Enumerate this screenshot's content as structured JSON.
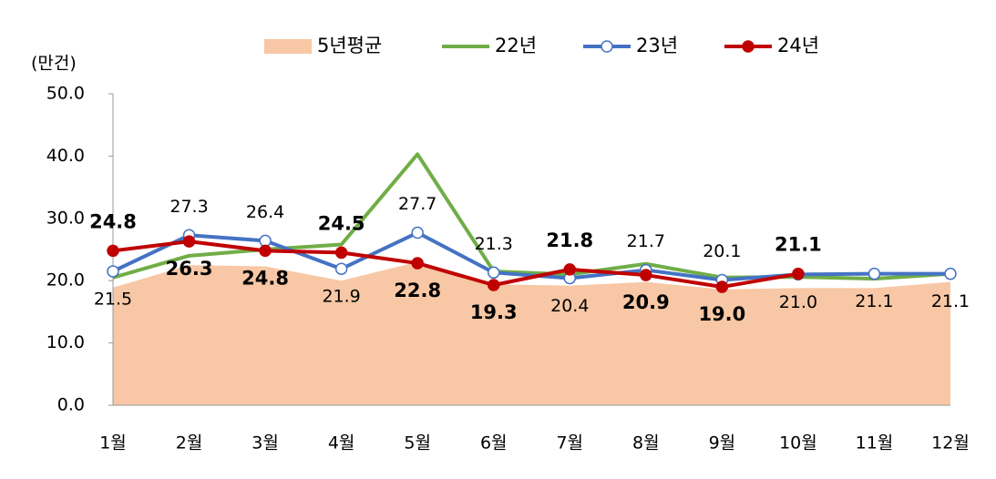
{
  "chart_data": {
    "type": "line",
    "y_label": "(만건)",
    "categories": [
      "1월",
      "2월",
      "3월",
      "4월",
      "5월",
      "6월",
      "7월",
      "8월",
      "9월",
      "10월",
      "11월",
      "12월"
    ],
    "ylim": [
      0,
      50
    ],
    "yticks": [
      {
        "value": 0,
        "label": "0.0"
      },
      {
        "value": 10,
        "label": "10.0"
      },
      {
        "value": 20,
        "label": "20.0"
      },
      {
        "value": 30,
        "label": "30.0"
      },
      {
        "value": 40,
        "label": "40.0"
      },
      {
        "value": 50,
        "label": "50.0"
      }
    ],
    "series": [
      {
        "name": "5년평균",
        "kind": "area",
        "color": "#f8c7a5",
        "values": [
          18.9,
          22.5,
          22.3,
          20.0,
          23.0,
          19.4,
          19.2,
          19.8,
          18.6,
          18.8,
          18.8,
          19.8
        ]
      },
      {
        "name": "22년",
        "color": "#70ad47",
        "values": [
          20.5,
          24.0,
          25.0,
          25.8,
          40.3,
          21.5,
          21.0,
          22.7,
          20.5,
          20.6,
          20.3,
          21.1
        ]
      },
      {
        "name": "23년",
        "color": "#4472c4",
        "marker_fill": "#ffffff",
        "values": [
          21.5,
          27.3,
          26.4,
          21.9,
          27.7,
          21.3,
          20.4,
          21.7,
          20.1,
          21.0,
          21.1,
          21.1
        ],
        "value_labels": [
          "21.5",
          "27.3",
          "26.4",
          "21.9",
          "27.7",
          "21.3",
          "20.4",
          "21.7",
          "20.1",
          "21.0",
          "21.1",
          "21.1"
        ]
      },
      {
        "name": "24년",
        "color": "#c00000",
        "marker_fill": "#c00000",
        "bold_labels": true,
        "values": [
          24.8,
          26.3,
          24.8,
          24.5,
          22.8,
          19.3,
          21.8,
          20.9,
          19.0,
          21.1,
          null,
          null
        ],
        "value_labels": [
          "24.8",
          "26.3",
          "24.8",
          "24.5",
          "22.8",
          "19.3",
          "21.8",
          "20.9",
          "19.0",
          "21.1",
          null,
          null
        ]
      }
    ]
  }
}
